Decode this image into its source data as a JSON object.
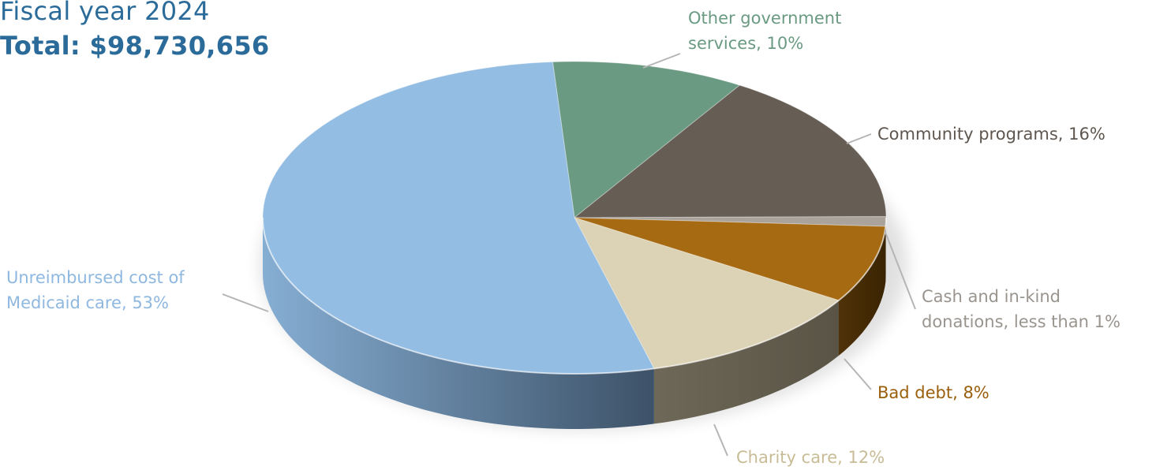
{
  "header": {
    "subtitle": "Fiscal year 2024",
    "title": "Total: $98,730,656"
  },
  "chart_data": {
    "type": "pie",
    "style": "3d",
    "categories": [
      "Other government services",
      "Community programs",
      "Cash and in-kind donations",
      "Bad debt",
      "Charity care",
      "Unreimbursed cost of Medicaid care"
    ],
    "values": [
      10,
      16,
      1,
      8,
      12,
      53
    ],
    "value_unit": "%",
    "colors": [
      "#6b9a82",
      "#665e55",
      "#aaa39c",
      "#a66a12",
      "#dcd3b6",
      "#94bde3"
    ],
    "labels": [
      {
        "line1": "Other government",
        "line2": "services, 10%",
        "color": "#6b9a82"
      },
      {
        "line1": "Community programs, 16%",
        "line2": "",
        "color": "#5f574f"
      },
      {
        "line1": "Cash and in-kind",
        "line2": "donations, less than 1%",
        "color": "#9a948e"
      },
      {
        "line1": "Bad debt, 8%",
        "line2": "",
        "color": "#9a5f0c"
      },
      {
        "line1": "Charity care, 12%",
        "line2": "",
        "color": "#c8bc96"
      },
      {
        "line1": "Unreimbursed cost of",
        "line2": "Medicaid care, 53%",
        "color": "#8fb8e0"
      }
    ]
  }
}
